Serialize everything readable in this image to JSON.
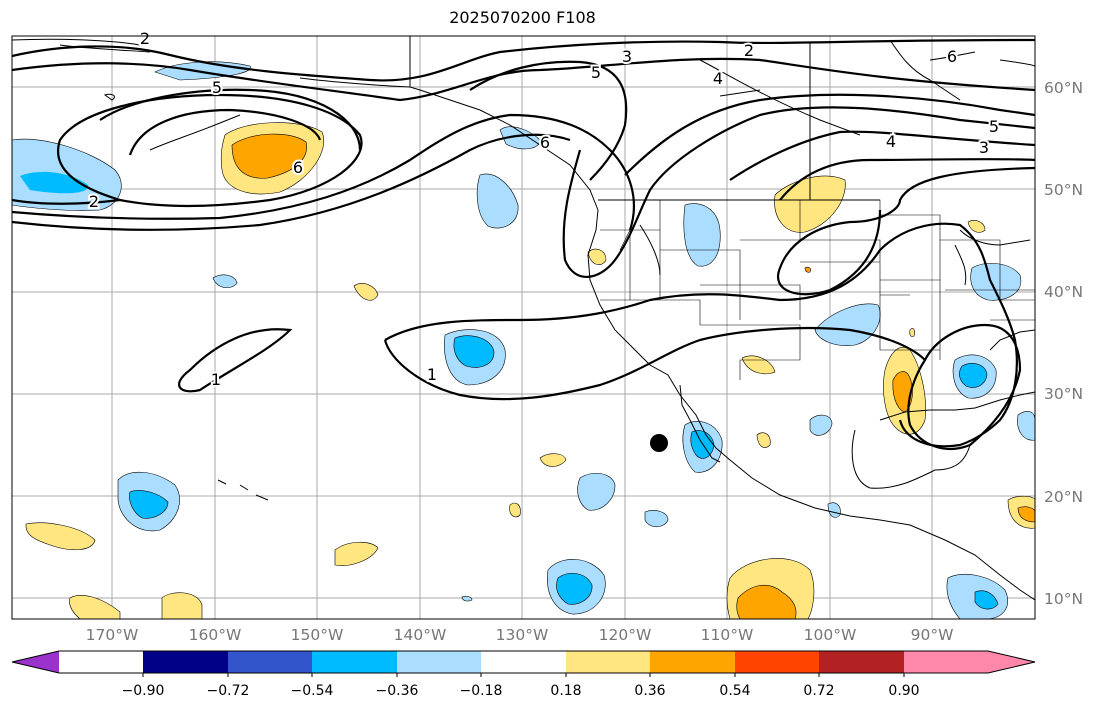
{
  "title": "2025070200 F108",
  "longitude_labels": [
    "170°W",
    "160°W",
    "150°W",
    "140°W",
    "130°W",
    "120°W",
    "110°W",
    "100°W",
    "90°W"
  ],
  "latitude_labels": [
    "60°N",
    "50°N",
    "40°N",
    "30°N",
    "20°N",
    "10°N"
  ],
  "contour_labels": [
    "1",
    "1",
    "2",
    "2",
    "2",
    "3",
    "3",
    "4",
    "4",
    "5",
    "5",
    "5",
    "6",
    "6",
    "6"
  ],
  "colorbar": {
    "tick_labels": [
      "−0.90",
      "−0.72",
      "−0.54",
      "−0.36",
      "−0.18",
      "0.18",
      "0.36",
      "0.54",
      "0.72",
      "0.90"
    ],
    "colors": [
      "#9933cc",
      "#000088",
      "#3355cc",
      "#00bbff",
      "#aaddff",
      "#ffffff",
      "#ffe680",
      "#ffa500",
      "#ff4400",
      "#b22222",
      "#ff88aa"
    ]
  }
}
